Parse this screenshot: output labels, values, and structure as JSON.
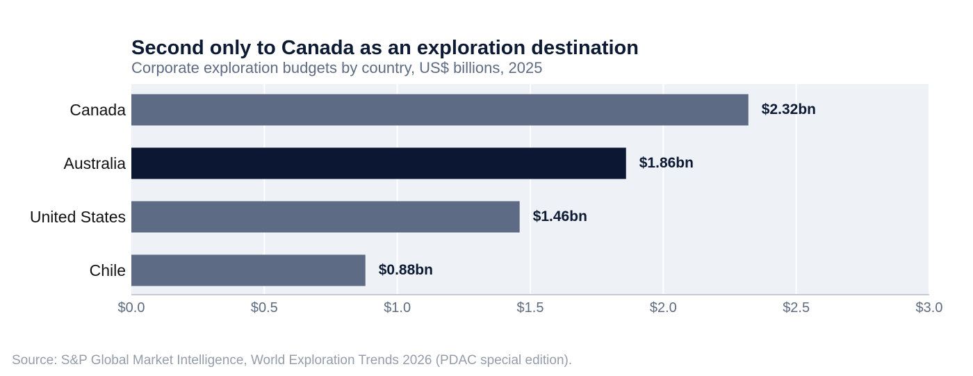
{
  "chart_data": {
    "type": "bar",
    "orientation": "horizontal",
    "title": "Second only to Canada as an exploration destination",
    "subtitle": "Corporate exploration budgets by country, US$ billions, 2025",
    "categories": [
      "Canada",
      "Australia",
      "United States",
      "Chile"
    ],
    "values": [
      2.32,
      1.86,
      1.46,
      0.88
    ],
    "data_labels": [
      "$2.32bn",
      "$1.86bn",
      "$1.46bn",
      "$0.88bn"
    ],
    "highlight_category": "Australia",
    "xlim": [
      0,
      3
    ],
    "x_ticks": [
      0,
      0.5,
      1,
      1.5,
      2,
      2.5,
      3
    ],
    "x_tick_labels": [
      "$0.0",
      "$0.5",
      "$1.0",
      "$1.5",
      "$2.0",
      "$2.5",
      "$3.0"
    ],
    "xlabel": "",
    "ylabel": "",
    "grid": "vertical",
    "legend": "none",
    "colors": {
      "bar": "#5d6b85",
      "highlight": "#0c1833",
      "plot_background": "#eef1f6",
      "gridline": "#ffffff",
      "axis_line": "#c5cad6",
      "tick_label": "#5e6b82",
      "category_label": "#111111",
      "data_label": "#0c1a33"
    }
  },
  "source": "Source: S&P Global Market Intelligence, World Exploration Trends 2026 (PDAC special edition)."
}
